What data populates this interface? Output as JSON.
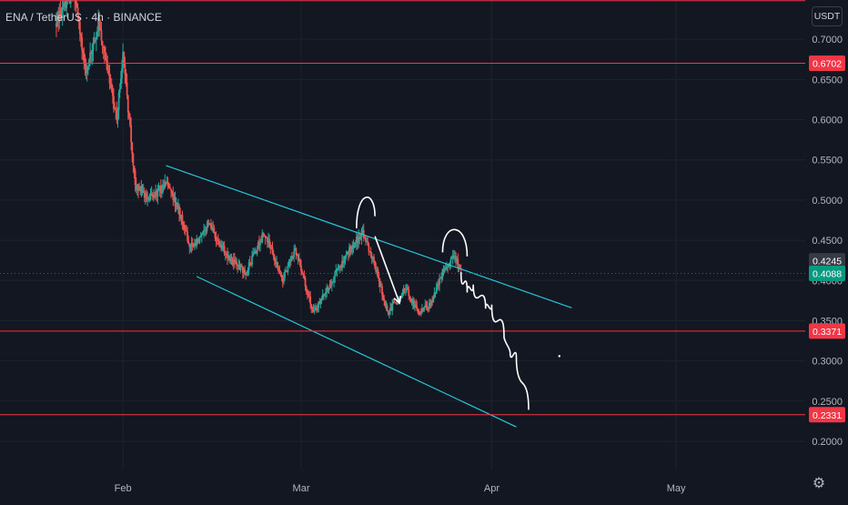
{
  "header": {
    "symbol_title": "ENA / TetherUS · 4h · BINANCE",
    "currency_label": "USDT",
    "settings_icon": "gear-icon"
  },
  "colors": {
    "background": "#131722",
    "grid": "#1e222d",
    "axis_text": "#b2b5be",
    "up_candle": "#26a69a",
    "down_candle": "#ef5350",
    "horizontal_level": "#f23645",
    "channel_line": "#26c6da",
    "annotation": "#ffffff",
    "last_price_bg": "#089981",
    "prev_price_bg": "#363a45"
  },
  "chart_data": {
    "type": "candlestick",
    "symbol": "ENA / TetherUS",
    "interval": "4h",
    "exchange": "BINANCE",
    "quote": "USDT",
    "x_ticks": [
      {
        "date": "2024-02-01",
        "label": "Feb"
      },
      {
        "date": "2024-03-01",
        "label": "Mar"
      },
      {
        "date": "2024-04-01",
        "label": "Apr"
      },
      {
        "date": "2024-05-01",
        "label": "May"
      }
    ],
    "x_range": [
      "2024-01-12",
      "2024-05-22"
    ],
    "y_range": [
      0.165,
      0.7488
    ],
    "y_ticks": [
      0.2,
      0.25,
      0.3,
      0.35,
      0.4,
      0.45,
      0.5,
      0.55,
      0.6,
      0.65,
      0.7
    ],
    "y_tick_labels": [
      "0.2000",
      "0.2500",
      "0.3000",
      "0.3500",
      "0.4000",
      "0.4500",
      "0.5000",
      "0.5500",
      "0.6000",
      "0.6500",
      "0.7000"
    ],
    "grid": true,
    "horizontal_levels": [
      {
        "value": 0.748,
        "label": ""
      },
      {
        "value": 0.6702,
        "label": "0.6702"
      },
      {
        "value": 0.3371,
        "label": "0.3371"
      },
      {
        "value": 0.2331,
        "label": "0.2331"
      }
    ],
    "price_labels": [
      {
        "value": 0.4245,
        "label": "0.4245",
        "kind": "previous"
      },
      {
        "value": 0.4088,
        "label": "0.4088",
        "kind": "last"
      }
    ],
    "last_price_line": 0.4088,
    "channel_upper": [
      {
        "date": "2024-02-08",
        "value": 0.543
      },
      {
        "date": "2024-04-14",
        "value": 0.366
      }
    ],
    "channel_lower": [
      {
        "date": "2024-02-13",
        "value": 0.405
      },
      {
        "date": "2024-04-05",
        "value": 0.218
      }
    ],
    "anchors": [
      {
        "date": "2024-01-21",
        "price": 0.72
      },
      {
        "date": "2024-01-24",
        "price": 0.76
      },
      {
        "date": "2024-01-26",
        "price": 0.66
      },
      {
        "date": "2024-01-28",
        "price": 0.72
      },
      {
        "date": "2024-01-31",
        "price": 0.6
      },
      {
        "date": "2024-02-01",
        "price": 0.68
      },
      {
        "date": "2024-02-02",
        "price": 0.6
      },
      {
        "date": "2024-02-03",
        "price": 0.52
      },
      {
        "date": "2024-02-05",
        "price": 0.5
      },
      {
        "date": "2024-02-08",
        "price": 0.52
      },
      {
        "date": "2024-02-10",
        "price": 0.49
      },
      {
        "date": "2024-02-12",
        "price": 0.44
      },
      {
        "date": "2024-02-15",
        "price": 0.47
      },
      {
        "date": "2024-02-18",
        "price": 0.43
      },
      {
        "date": "2024-02-21",
        "price": 0.41
      },
      {
        "date": "2024-02-24",
        "price": 0.46
      },
      {
        "date": "2024-02-27",
        "price": 0.4
      },
      {
        "date": "2024-02-29",
        "price": 0.44
      },
      {
        "date": "2024-03-03",
        "price": 0.36
      },
      {
        "date": "2024-03-06",
        "price": 0.4
      },
      {
        "date": "2024-03-09",
        "price": 0.44
      },
      {
        "date": "2024-03-11",
        "price": 0.46
      },
      {
        "date": "2024-03-13",
        "price": 0.42
      },
      {
        "date": "2024-03-15",
        "price": 0.36
      },
      {
        "date": "2024-03-18",
        "price": 0.39
      },
      {
        "date": "2024-03-20",
        "price": 0.36
      },
      {
        "date": "2024-03-22",
        "price": 0.37
      },
      {
        "date": "2024-03-24",
        "price": 0.41
      },
      {
        "date": "2024-03-26",
        "price": 0.43
      },
      {
        "date": "2024-03-27",
        "price": 0.4088
      }
    ],
    "annotations": {
      "projected_path": [
        {
          "date": "2024-03-27",
          "price": 0.41
        },
        {
          "date": "2024-03-28",
          "price": 0.385
        },
        {
          "date": "2024-03-29",
          "price": 0.395
        },
        {
          "date": "2024-03-31",
          "price": 0.365
        },
        {
          "date": "2024-04-01",
          "price": 0.37
        },
        {
          "date": "2024-04-03",
          "price": 0.33
        },
        {
          "date": "2024-04-04",
          "price": 0.31
        },
        {
          "date": "2024-04-05",
          "price": 0.305
        },
        {
          "date": "2024-04-07",
          "price": 0.24
        }
      ],
      "top_arcs": [
        {
          "start": {
            "date": "2024-03-10",
            "price": 0.465
          },
          "peak": {
            "date": "2024-03-11",
            "price": 0.5
          },
          "end": {
            "date": "2024-03-13",
            "price": 0.48
          }
        },
        {
          "start": {
            "date": "2024-03-24",
            "price": 0.435
          },
          "peak": {
            "date": "2024-03-26",
            "price": 0.46
          },
          "end": {
            "date": "2024-03-28",
            "price": 0.43
          }
        }
      ],
      "arrow": {
        "from": {
          "date": "2024-03-13",
          "price": 0.455
        },
        "to": {
          "date": "2024-03-17",
          "price": 0.372
        }
      },
      "dot": {
        "date": "2024-04-12",
        "price": 0.306
      }
    }
  }
}
